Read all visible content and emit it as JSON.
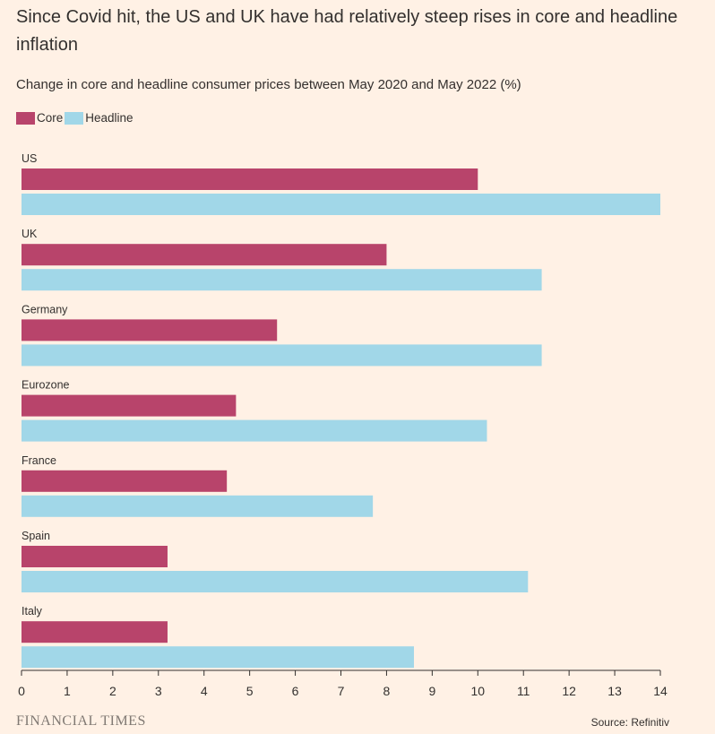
{
  "header": {
    "title": "Since Covid hit, the US and UK have had relatively steep rises in core and headline inflation",
    "subtitle": "Change in core and headline consumer prices between May 2020 and May 2022 (%)"
  },
  "legend": {
    "core_label": "Core",
    "headline_label": "Headline"
  },
  "colors": {
    "core": "#b8446b",
    "headline": "#a1d7e8",
    "axis": "#33302e",
    "background": "#fff1e5"
  },
  "chart_data": {
    "type": "bar",
    "orientation": "horizontal",
    "title": "Since Covid hit, the US and UK have had relatively steep rises in core and headline inflation",
    "subtitle": "Change in core and headline consumer prices between May 2020 and May 2022 (%)",
    "xlabel": "",
    "ylabel": "",
    "xlim": [
      0,
      14
    ],
    "x_ticks": [
      0,
      1,
      2,
      3,
      4,
      5,
      6,
      7,
      8,
      9,
      10,
      11,
      12,
      13,
      14
    ],
    "categories": [
      "US",
      "UK",
      "Germany",
      "Eurozone",
      "France",
      "Spain",
      "Italy"
    ],
    "series": [
      {
        "name": "Core",
        "values": [
          10.0,
          8.0,
          5.6,
          4.7,
          4.5,
          3.2,
          3.2
        ]
      },
      {
        "name": "Headline",
        "values": [
          14.0,
          11.4,
          11.4,
          10.2,
          7.7,
          11.1,
          8.6
        ]
      }
    ],
    "legend": "top-left",
    "grid": false
  },
  "footer": {
    "brand": "FINANCIAL TIMES",
    "source": "Source: Refinitiv"
  }
}
